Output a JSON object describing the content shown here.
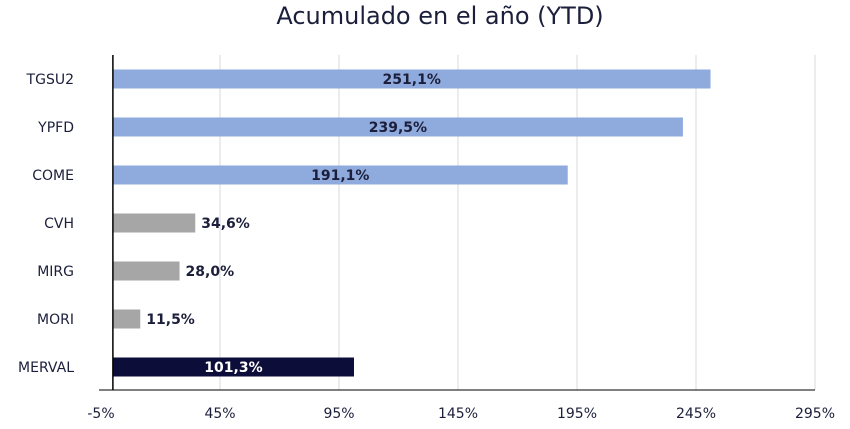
{
  "chart_data": {
    "type": "bar",
    "orientation": "horizontal",
    "title": "Acumulado en el año (YTD)",
    "categories": [
      "TGSU2",
      "YPFD",
      "COME",
      "CVH",
      "MIRG",
      "MORI",
      "MERVAL"
    ],
    "values": [
      251.1,
      239.5,
      191.1,
      34.6,
      28.0,
      11.5,
      101.3
    ],
    "data_labels": [
      "251,1%",
      "239,5%",
      "191,1%",
      "34,6%",
      "28,0%",
      "11,5%",
      "101,3%"
    ],
    "bar_colors": [
      "#8faadc",
      "#8faadc",
      "#8faadc",
      "#a6a6a6",
      "#a6a6a6",
      "#a6a6a6",
      "#0d0d3a"
    ],
    "label_colors": [
      "#1b1f3b",
      "#1b1f3b",
      "#1b1f3b",
      "#1b1f3b",
      "#1b1f3b",
      "#1b1f3b",
      "#ffffff"
    ],
    "label_inside": [
      true,
      true,
      true,
      false,
      false,
      false,
      true
    ],
    "x_ticks": [
      -5,
      45,
      95,
      145,
      195,
      245,
      295
    ],
    "x_tick_labels": [
      "-5%",
      "45%",
      "95%",
      "145%",
      "195%",
      "245%",
      "295%"
    ],
    "xlim": [
      -5,
      295
    ],
    "grid": "vertical",
    "legend": "none"
  }
}
